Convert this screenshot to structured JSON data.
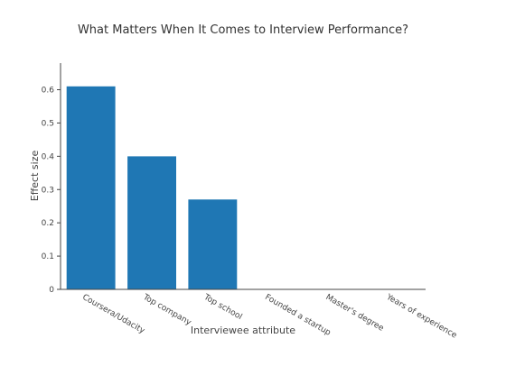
{
  "chart_data": {
    "type": "bar",
    "title": "What Matters When It Comes to Interview Performance?",
    "xlabel": "Interviewee attribute",
    "ylabel": "Effect size",
    "categories": [
      "Coursera/Udacity",
      "Top company",
      "Top school",
      "Founded a startup",
      "Master's degree",
      "Years of experience"
    ],
    "values": [
      0.61,
      0.4,
      0.27,
      0,
      0,
      0
    ],
    "ylim": [
      0,
      0.68
    ],
    "yticks": [
      "0",
      "0.1",
      "0.2",
      "0.3",
      "0.4",
      "0.5",
      "0.6"
    ],
    "bar_color": "#1f77b4",
    "grid": false,
    "legend": false
  }
}
